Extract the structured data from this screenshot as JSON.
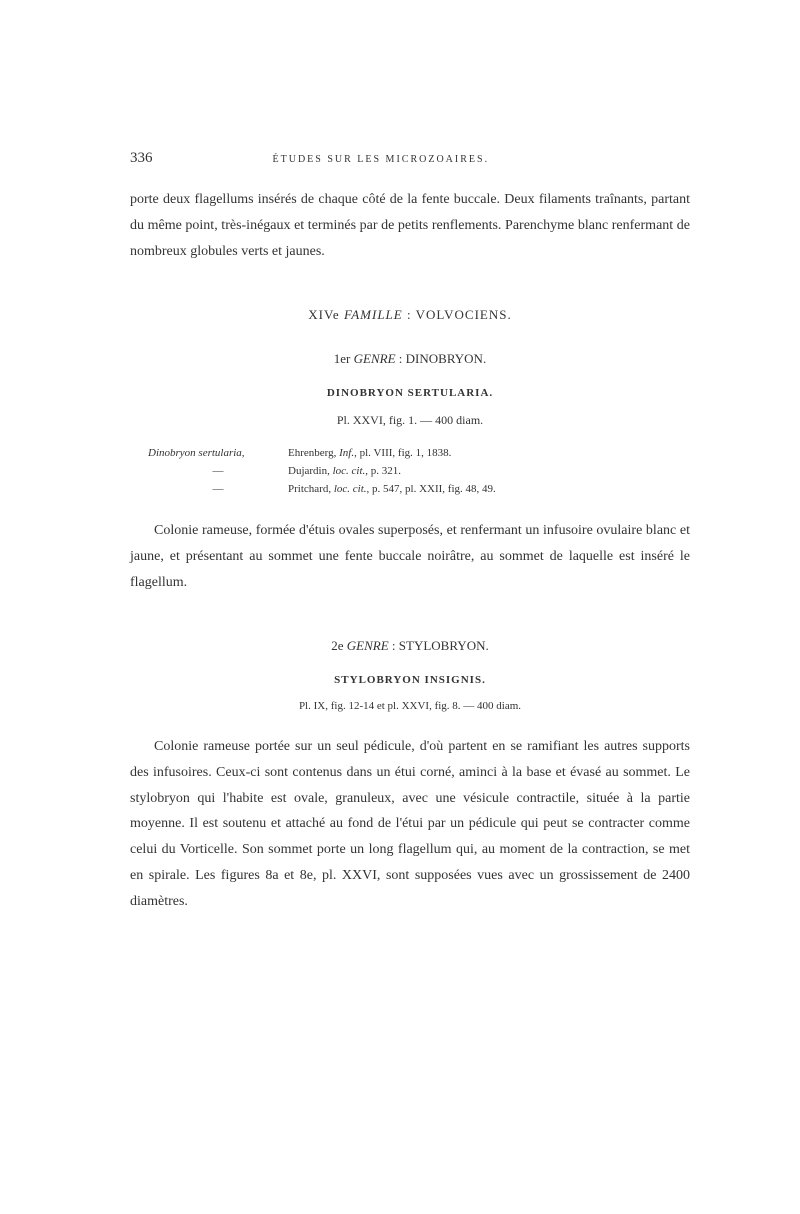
{
  "page": {
    "number": "336",
    "running_title": "ÉTUDES SUR LES MICROZOAIRES."
  },
  "intro_paragraph": "porte deux flagellums insérés de chaque côté de la fente buccale. Deux filaments traînants, partant du même point, très-inégaux et terminés par de petits renflements. Parenchyme blanc renfermant de nombreux globules verts et jaunes.",
  "family": {
    "number": "XIVe",
    "label_italic": "FAMILLE",
    "separator": " : ",
    "name": "VOLVOCIENS."
  },
  "genre1": {
    "number": "1er",
    "label_italic": "GENRE",
    "separator": " : ",
    "name": "DINOBRYON."
  },
  "species1": {
    "heading": "DINOBRYON SERTULARIA.",
    "plate": "Pl. XXVI, fig. 1. — 400 diam.",
    "refs": [
      {
        "species": "Dinobryon sertularia,",
        "text": "Ehrenberg, ",
        "italic": "Inf.",
        "rest": ", pl. VIII, fig. 1, 1838."
      },
      {
        "species": "—",
        "text": "Dujardin, ",
        "italic": "loc. cit.",
        "rest": ", p. 321."
      },
      {
        "species": "—",
        "text": "Pritchard, ",
        "italic": "loc. cit.",
        "rest": ", p. 547, pl. XXII, fig. 48, 49."
      }
    ],
    "paragraph": "Colonie rameuse, formée d'étuis ovales superposés, et renfermant un infusoire ovulaire blanc et jaune, et présentant au sommet une fente buccale noirâtre, au sommet de laquelle est inséré le flagellum."
  },
  "genre2": {
    "number": "2e",
    "label_italic": "GENRE",
    "separator": " : ",
    "name": "STYLOBRYON."
  },
  "species2": {
    "heading": "STYLOBRYON INSIGNIS.",
    "plate": "Pl. IX, fig. 12-14 et pl. XXVI, fig. 8. — 400 diam.",
    "paragraph": "Colonie rameuse portée sur un seul pédicule, d'où partent en se ramifiant les autres supports des infusoires. Ceux-ci sont contenus dans un étui corné, aminci à la base et évasé au sommet. Le stylobryon qui l'habite est ovale, granuleux, avec une vésicule contractile, située à la partie moyenne. Il est soutenu et attaché au fond de l'étui par un pédicule qui peut se contracter comme celui du Vorticelle. Son sommet porte un long flagellum qui, au moment de la contraction, se met en spirale. Les figures 8a et 8e, pl. XXVI, sont supposées vues avec un grossissement de 2400 diamètres."
  },
  "colors": {
    "background": "#ffffff",
    "text": "#333333"
  }
}
